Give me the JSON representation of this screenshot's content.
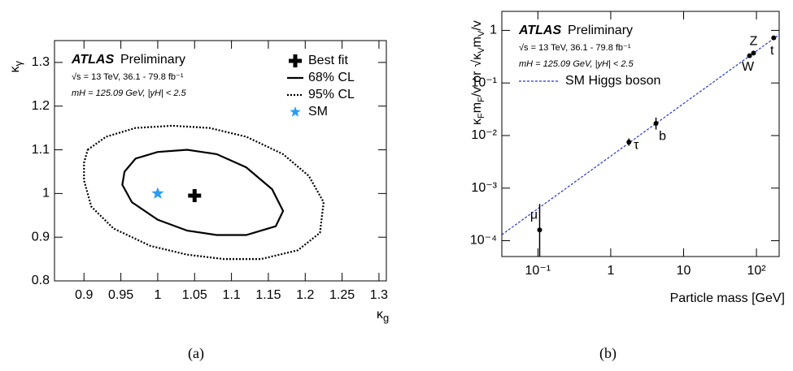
{
  "chart_data": [
    {
      "type": "contour",
      "caption": "(a)",
      "experiment": "ATLAS",
      "status": "Preliminary",
      "energy": "√s = 13 TeV, 36.1 - 79.8 fb⁻¹",
      "selection": "mH = 125.09 GeV, |yH| < 2.5",
      "xlabel": "κ",
      "xlabel_sub": "g",
      "ylabel": "κ",
      "ylabel_sub": "γ",
      "xlim": [
        0.86,
        1.31
      ],
      "ylim": [
        0.8,
        1.35
      ],
      "xticks": [
        0.9,
        0.95,
        1,
        1.05,
        1.1,
        1.15,
        1.2,
        1.25,
        1.3
      ],
      "yticks": [
        0.8,
        0.9,
        1,
        1.1,
        1.2,
        1.3
      ],
      "legend": "upper right",
      "series": [
        {
          "name": "Best fit",
          "marker": "cross",
          "color": "#000000",
          "x": [
            1.05
          ],
          "values": [
            0.995
          ]
        },
        {
          "name": "68% CL",
          "line": "solid",
          "color": "#000000",
          "x": [
            0.955,
            0.97,
            1.0,
            1.04,
            1.08,
            1.12,
            1.155,
            1.17,
            1.16,
            1.12,
            1.08,
            1.04,
            1.0,
            0.965,
            0.952
          ],
          "values": [
            1.05,
            1.08,
            1.095,
            1.1,
            1.09,
            1.06,
            1.01,
            0.96,
            0.925,
            0.905,
            0.905,
            0.915,
            0.94,
            0.98,
            1.02
          ]
        },
        {
          "name": "95% CL",
          "line": "dotted",
          "color": "#000000",
          "x": [
            0.905,
            0.93,
            0.97,
            1.02,
            1.07,
            1.12,
            1.17,
            1.205,
            1.225,
            1.22,
            1.19,
            1.14,
            1.09,
            1.04,
            0.99,
            0.94,
            0.91,
            0.9,
            0.9
          ],
          "values": [
            1.1,
            1.13,
            1.15,
            1.155,
            1.15,
            1.13,
            1.09,
            1.04,
            0.98,
            0.91,
            0.87,
            0.85,
            0.85,
            0.86,
            0.88,
            0.92,
            0.97,
            1.03,
            1.07
          ]
        },
        {
          "name": "SM",
          "marker": "star",
          "color": "#2a9df4",
          "x": [
            1
          ],
          "values": [
            1
          ]
        }
      ]
    },
    {
      "type": "scatter",
      "caption": "(b)",
      "experiment": "ATLAS",
      "status": "Preliminary",
      "energy": "√s = 13 TeV, 36.1 - 79.8 fb⁻¹",
      "selection": "mH = 125.09 GeV, |yH| < 2.5",
      "xlabel": "Particle mass [GeV]",
      "ylabel_parts": [
        "κ",
        "F",
        "m",
        "F",
        "/",
        "v",
        "or",
        "√",
        "κ",
        "V",
        "m",
        "V",
        "/",
        "v"
      ],
      "xlog": true,
      "ylog": true,
      "xlim": [
        0.032,
        205
      ],
      "ylim": [
        5e-05,
        2.3
      ],
      "xticks": [
        {
          "value": 0.1,
          "label": "10⁻¹"
        },
        1,
        10,
        {
          "value": 100,
          "label": "10²"
        }
      ],
      "yticks": [
        {
          "value": 0.0001,
          "label": "10⁻⁴"
        },
        {
          "value": 0.001,
          "label": "10⁻³"
        },
        {
          "value": 0.01,
          "label": "10⁻²"
        },
        {
          "value": 0.1,
          "label": "10⁻¹"
        },
        1
      ],
      "legend": "upper left",
      "series": [
        {
          "name": "SM Higgs boson",
          "line": "dashed",
          "color": "#2233dd",
          "x": [
            0.032,
            205
          ],
          "values": [
            0.00013,
            0.833
          ]
        },
        {
          "marker": "dot",
          "color": "#000000",
          "labels": [
            "μ",
            "τ",
            "b",
            "W",
            "Z",
            "t"
          ],
          "x": [
            0.1057,
            1.777,
            4.18,
            80.4,
            91.2,
            172.5
          ],
          "values": [
            0.00016,
            0.0075,
            0.017,
            0.33,
            0.37,
            0.72
          ],
          "lower": [
            4e-05,
            0.0064,
            0.013,
            0.31,
            0.35,
            0.67
          ],
          "upper": [
            0.0005,
            0.0088,
            0.022,
            0.35,
            0.39,
            0.77
          ]
        }
      ]
    }
  ]
}
